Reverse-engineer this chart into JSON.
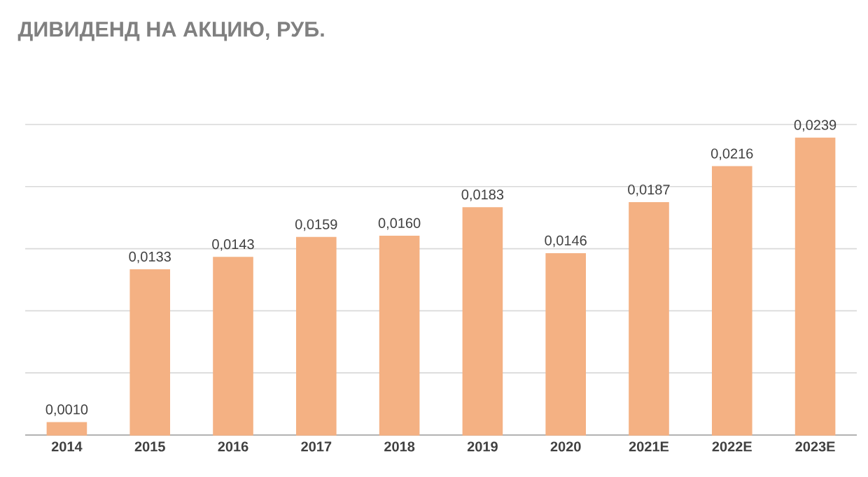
{
  "chart_data": {
    "type": "bar",
    "title": "ДИВИДЕНД НА АКЦИЮ, РУБ.",
    "categories": [
      "2014",
      "2015",
      "2016",
      "2017",
      "2018",
      "2019",
      "2020",
      "2021E",
      "2022E",
      "2023E"
    ],
    "values": [
      0.001,
      0.0133,
      0.0143,
      0.0159,
      0.016,
      0.0183,
      0.0146,
      0.0187,
      0.0216,
      0.0239
    ],
    "value_labels": [
      "0,0010",
      "0,0133",
      "0,0143",
      "0,0159",
      "0,0160",
      "0,0183",
      "0,0146",
      "0,0187",
      "0,0216",
      "0,0239"
    ],
    "color": "#f4b183",
    "ylim": [
      0,
      0.025
    ],
    "yticks": [
      {
        "value": 0,
        "label": null
      },
      {
        "value": 0.005,
        "label": null
      },
      {
        "value": 0.01,
        "label": null
      },
      {
        "value": 0.015,
        "label": null
      },
      {
        "value": 0.02,
        "label": null
      },
      {
        "value": 0.025,
        "label": null
      }
    ],
    "tick_labels": "x",
    "grid": "y"
  }
}
